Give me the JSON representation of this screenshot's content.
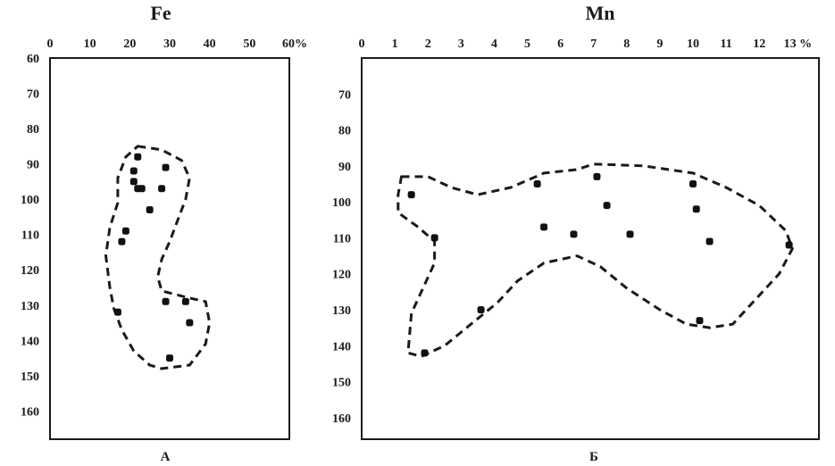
{
  "chart_data": [
    {
      "type": "scatter",
      "panel_label": "А",
      "title": "Fe",
      "x_ticks": [
        "0",
        "10",
        "20",
        "30",
        "40",
        "50",
        "60%"
      ],
      "y_ticks": [
        "60",
        "70",
        "80",
        "90",
        "100",
        "110",
        "120",
        "130",
        "140",
        "150",
        "160"
      ],
      "xlim": [
        0,
        60
      ],
      "ylim": [
        60,
        168
      ],
      "y_inverted": true,
      "x_axis_position": "top",
      "points": [
        {
          "x": 22,
          "y": 88
        },
        {
          "x": 21,
          "y": 92
        },
        {
          "x": 29,
          "y": 91
        },
        {
          "x": 21,
          "y": 95
        },
        {
          "x": 22,
          "y": 97
        },
        {
          "x": 23,
          "y": 97
        },
        {
          "x": 28,
          "y": 97
        },
        {
          "x": 25,
          "y": 103
        },
        {
          "x": 19,
          "y": 109
        },
        {
          "x": 18,
          "y": 112
        },
        {
          "x": 17,
          "y": 132
        },
        {
          "x": 29,
          "y": 129
        },
        {
          "x": 34,
          "y": 129
        },
        {
          "x": 35,
          "y": 135
        },
        {
          "x": 30,
          "y": 145
        }
      ],
      "outline": [
        [
          22,
          85
        ],
        [
          28,
          86
        ],
        [
          33,
          89
        ],
        [
          35,
          94
        ],
        [
          34,
          100
        ],
        [
          32,
          106
        ],
        [
          30,
          112
        ],
        [
          28,
          117
        ],
        [
          27,
          122
        ],
        [
          28,
          126
        ],
        [
          35,
          128
        ],
        [
          39,
          129
        ],
        [
          40,
          135
        ],
        [
          39,
          141
        ],
        [
          35,
          147
        ],
        [
          28,
          148
        ],
        [
          25,
          147
        ],
        [
          21,
          143
        ],
        [
          18,
          137
        ],
        [
          16,
          131
        ],
        [
          15,
          125
        ],
        [
          14,
          116
        ],
        [
          15,
          108
        ],
        [
          17,
          101
        ],
        [
          17,
          94
        ],
        [
          19,
          88
        ]
      ]
    },
    {
      "type": "scatter",
      "panel_label": "Б",
      "title": "Mn",
      "x_ticks": [
        "0",
        "1",
        "2",
        "3",
        "4",
        "5",
        "6",
        "7",
        "8",
        "9",
        "10",
        "11",
        "12",
        "13 %"
      ],
      "y_ticks": [
        "70",
        "80",
        "90",
        "100",
        "110",
        "120",
        "130",
        "140",
        "150",
        "160"
      ],
      "xlim": [
        0,
        13.8
      ],
      "ylim": [
        60,
        166
      ],
      "y_inverted": true,
      "x_axis_position": "top",
      "points": [
        {
          "x": 1.5,
          "y": 98
        },
        {
          "x": 2.2,
          "y": 110
        },
        {
          "x": 1.9,
          "y": 142
        },
        {
          "x": 3.6,
          "y": 130
        },
        {
          "x": 5.3,
          "y": 95
        },
        {
          "x": 5.5,
          "y": 107
        },
        {
          "x": 6.4,
          "y": 109
        },
        {
          "x": 7.1,
          "y": 93
        },
        {
          "x": 7.4,
          "y": 101
        },
        {
          "x": 8.1,
          "y": 109
        },
        {
          "x": 10.0,
          "y": 95
        },
        {
          "x": 10.1,
          "y": 102
        },
        {
          "x": 10.5,
          "y": 111
        },
        {
          "x": 10.2,
          "y": 133
        },
        {
          "x": 12.9,
          "y": 112
        }
      ],
      "outline": [
        [
          1.2,
          93
        ],
        [
          2.0,
          93
        ],
        [
          2.7,
          96
        ],
        [
          3.5,
          98
        ],
        [
          4.5,
          96
        ],
        [
          5.5,
          92
        ],
        [
          6.5,
          91
        ],
        [
          7.0,
          89.5
        ],
        [
          8.5,
          90
        ],
        [
          10.0,
          92
        ],
        [
          11.0,
          96
        ],
        [
          12.0,
          101
        ],
        [
          12.8,
          108
        ],
        [
          13.0,
          113
        ],
        [
          12.6,
          120
        ],
        [
          11.9,
          127
        ],
        [
          11.2,
          134
        ],
        [
          10.5,
          135
        ],
        [
          9.8,
          134
        ],
        [
          9.0,
          130
        ],
        [
          8.0,
          124
        ],
        [
          7.2,
          118
        ],
        [
          6.5,
          115
        ],
        [
          5.5,
          117
        ],
        [
          4.7,
          122
        ],
        [
          4.1,
          128
        ],
        [
          3.3,
          134
        ],
        [
          2.5,
          140
        ],
        [
          1.8,
          143
        ],
        [
          1.4,
          142
        ],
        [
          1.5,
          131
        ],
        [
          1.9,
          123
        ],
        [
          2.2,
          117
        ],
        [
          2.2,
          111
        ],
        [
          1.7,
          107
        ],
        [
          1.1,
          103
        ],
        [
          1.1,
          98
        ]
      ]
    }
  ]
}
